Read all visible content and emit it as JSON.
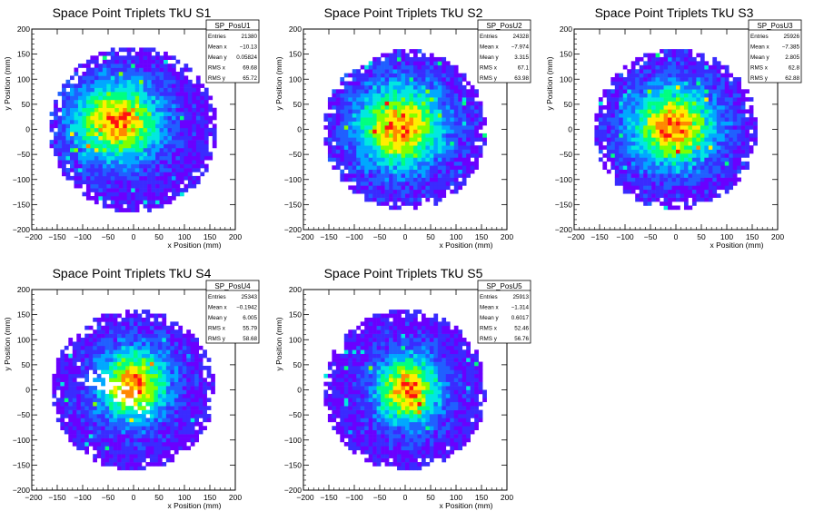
{
  "axis": {
    "xlabel": "x Position (mm)",
    "ylabel": "y Position (mm)",
    "xlim": [
      -200,
      200
    ],
    "ylim": [
      -200,
      200
    ],
    "xticks": [
      -200,
      -150,
      -100,
      -50,
      0,
      50,
      100,
      150,
      200
    ],
    "yticks": [
      -200,
      -150,
      -100,
      -50,
      0,
      50,
      100,
      150,
      200
    ]
  },
  "stat_labels": [
    "Entries",
    "Mean x",
    "Mean y",
    "RMS x",
    "RMS y"
  ],
  "palette": [
    "#6a00ff",
    "#3a2bff",
    "#2060ff",
    "#00a8ff",
    "#00e8e0",
    "#00ff80",
    "#80ff00",
    "#ffee00",
    "#ff8800",
    "#ff1010"
  ],
  "chart_data": [
    {
      "type": "heatmap",
      "title": "Space Point Triplets TkU S1",
      "stats_name": "SP_PosU1",
      "stats": {
        "entries": "21380",
        "mean_x": "−10.13",
        "mean_y": "0.05824",
        "rms_x": "69.68",
        "rms_y": "65.72"
      },
      "bin_size_mm": 8,
      "detector_radius_mm": 165,
      "peak": [
        -30,
        15
      ],
      "sigma": [
        60,
        55
      ],
      "holes": []
    },
    {
      "type": "heatmap",
      "title": "Space Point Triplets TkU S2",
      "stats_name": "SP_PosU2",
      "stats": {
        "entries": "24328",
        "mean_x": "−7.974",
        "mean_y": "3.315",
        "rms_x": "67.1",
        "rms_y": "63.98"
      },
      "bin_size_mm": 8,
      "detector_radius_mm": 160,
      "peak": [
        -10,
        5
      ],
      "sigma": [
        60,
        58
      ],
      "holes": []
    },
    {
      "type": "heatmap",
      "title": "Space Point Triplets TkU S3",
      "stats_name": "SP_PosU3",
      "stats": {
        "entries": "25926",
        "mean_x": "−7.385",
        "mean_y": "2.805",
        "rms_x": "62.8",
        "rms_y": "62.88"
      },
      "bin_size_mm": 8,
      "detector_radius_mm": 160,
      "peak": [
        -5,
        5
      ],
      "sigma": [
        58,
        56
      ],
      "holes": []
    },
    {
      "type": "heatmap",
      "title": "Space Point Triplets TkU S4",
      "stats_name": "SP_PosU4",
      "stats": {
        "entries": "25343",
        "mean_x": "−0.1942",
        "mean_y": "6.005",
        "rms_x": "55.79",
        "rms_y": "58.68"
      },
      "bin_size_mm": 8,
      "detector_radius_mm": 160,
      "peak": [
        0,
        10
      ],
      "sigma": [
        48,
        50
      ],
      "holes": [
        "diagonal"
      ]
    },
    {
      "type": "heatmap",
      "title": "Space Point Triplets TkU S5",
      "stats_name": "SP_PosU5",
      "stats": {
        "entries": "25913",
        "mean_x": "−1.314",
        "mean_y": "0.6017",
        "rms_x": "52.46",
        "rms_y": "56.76"
      },
      "bin_size_mm": 8,
      "detector_radius_mm": 160,
      "peak": [
        5,
        0
      ],
      "sigma": [
        45,
        48
      ],
      "holes": []
    }
  ]
}
